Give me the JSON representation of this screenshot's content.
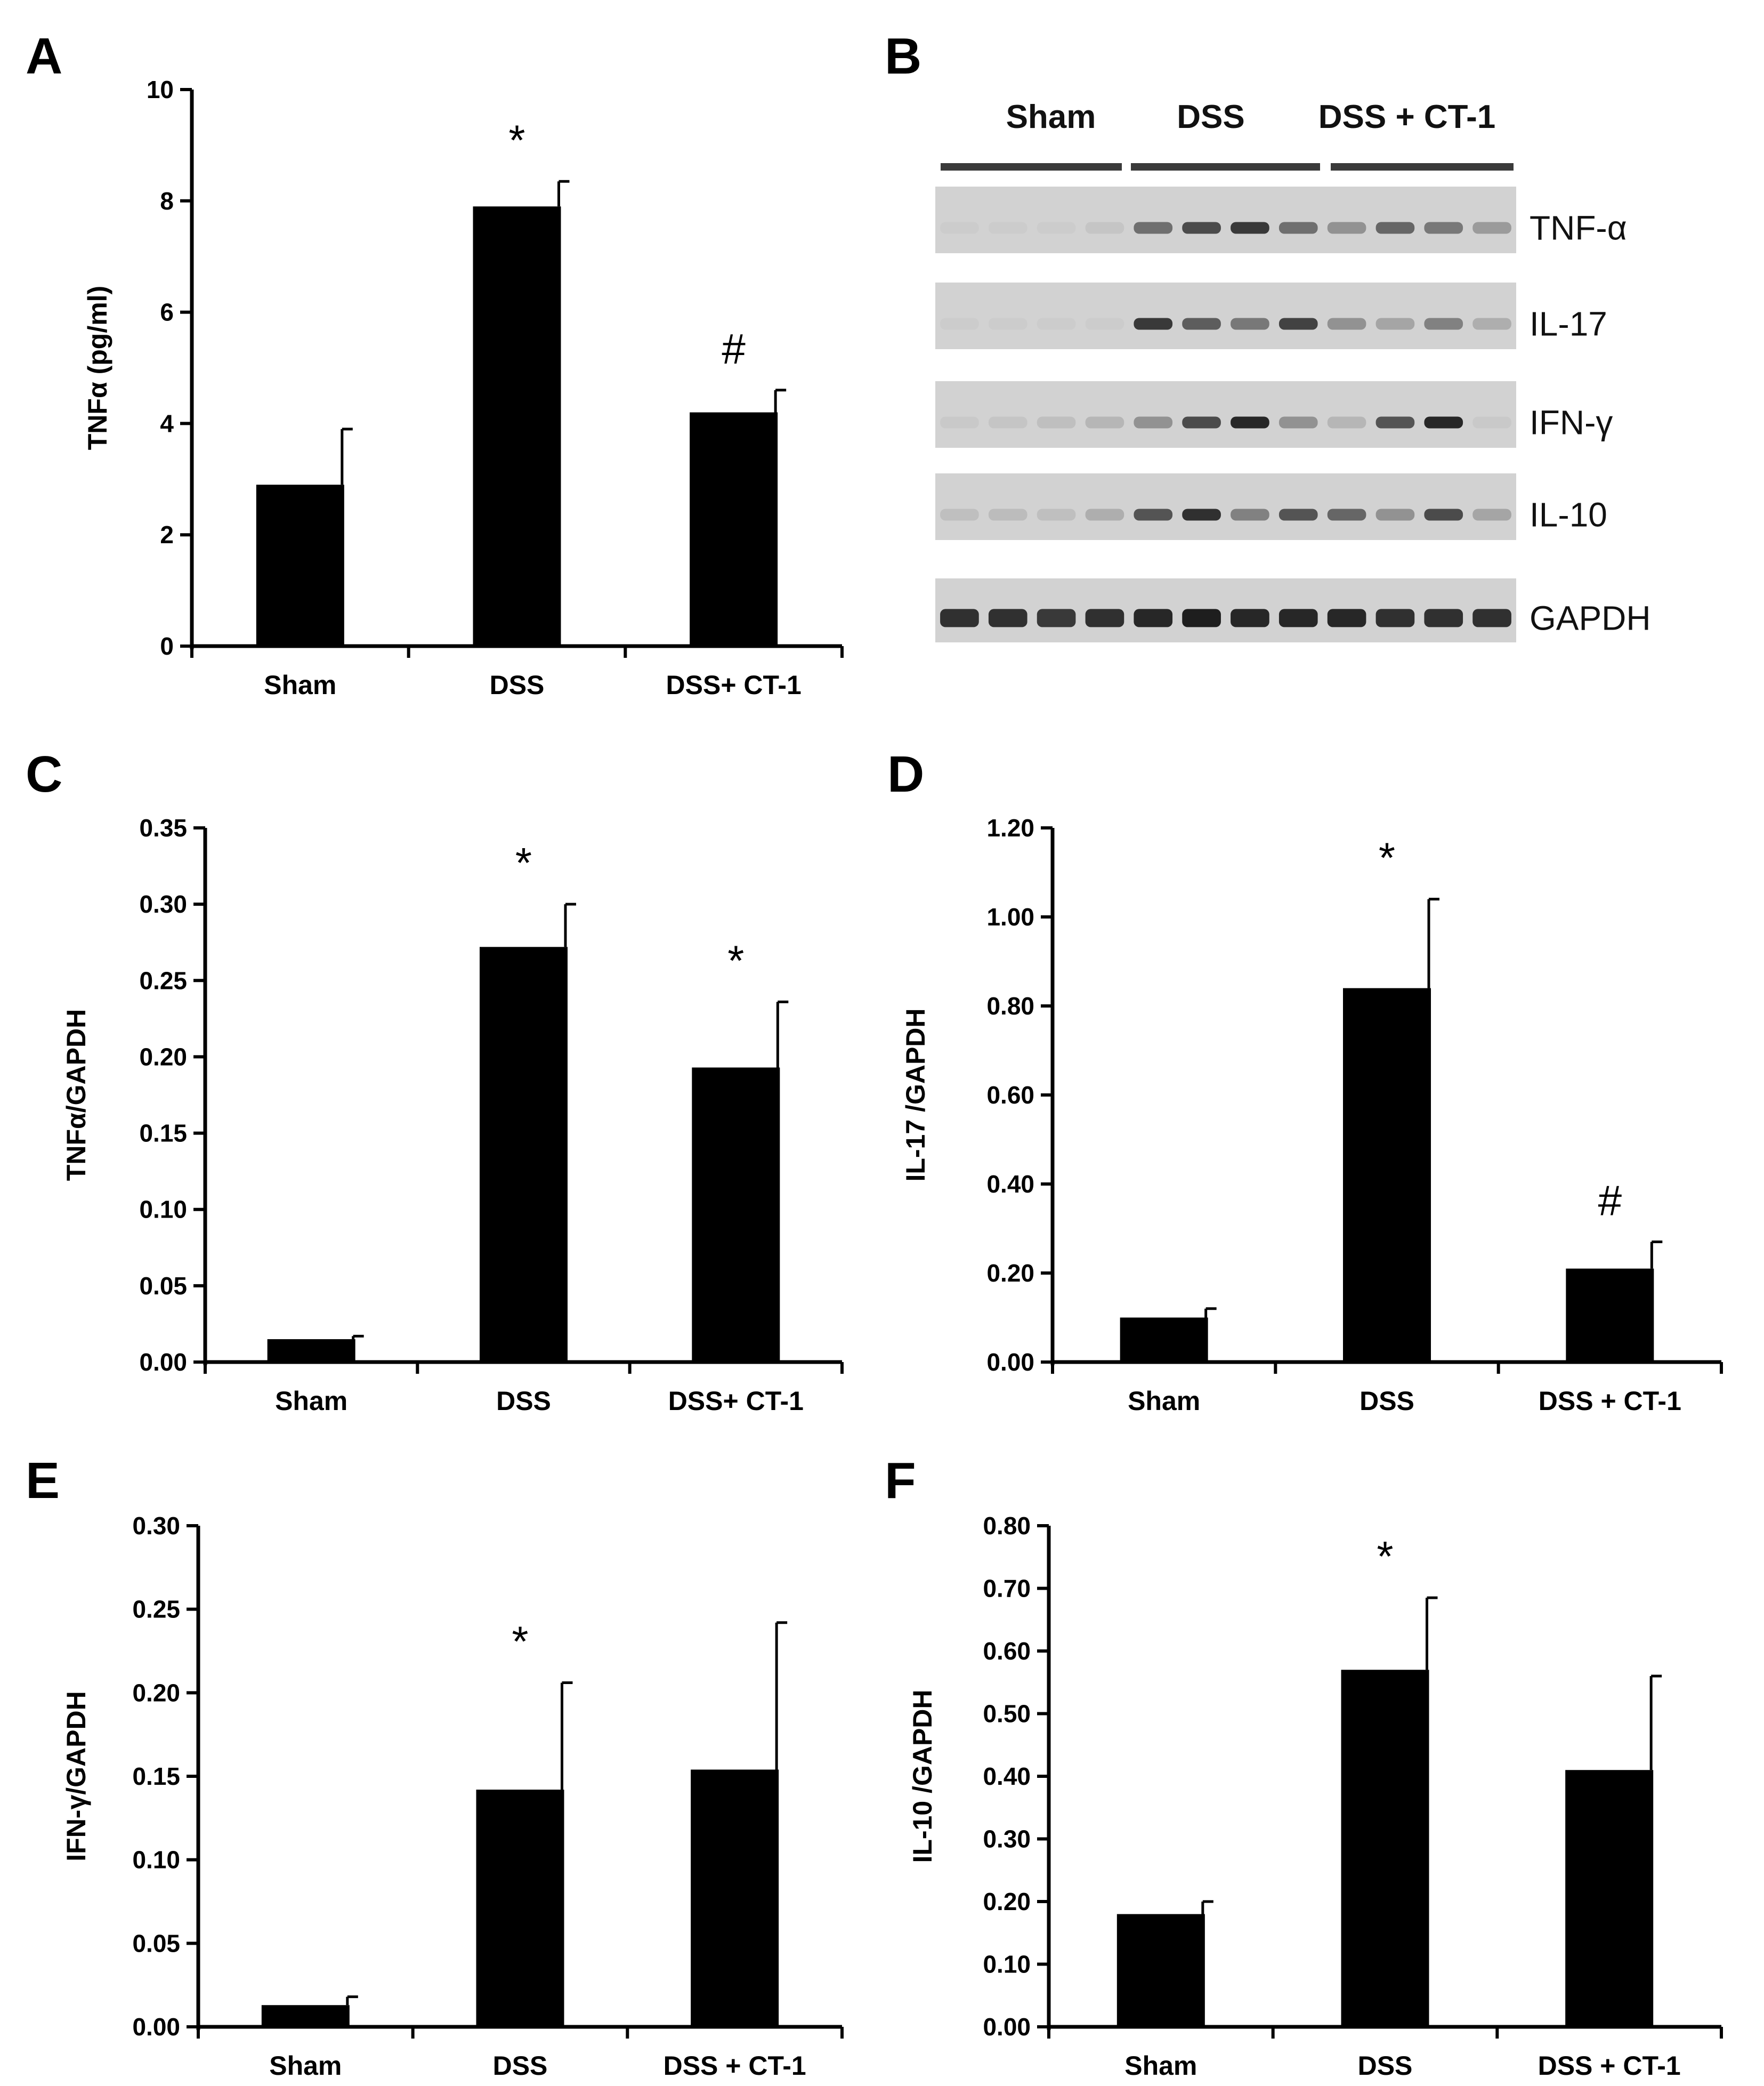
{
  "panel_labels": [
    "A",
    "B",
    "C",
    "D",
    "E",
    "F"
  ],
  "colors": {
    "bar": "#000000",
    "axis": "#000000",
    "blot_bg": "#d2d2d2",
    "blot_band": "#1e1e1e",
    "gap_line": "#e6e6e6"
  },
  "blot": {
    "panel": "B",
    "group_headers": [
      "Sham",
      "DSS",
      "DSS + CT-1"
    ],
    "lanes_per_group": 4,
    "rows": [
      {
        "label": "TNF-α",
        "intensities": [
          0.02,
          0.02,
          0.03,
          0.07,
          0.55,
          0.75,
          0.85,
          0.55,
          0.35,
          0.6,
          0.5,
          0.3
        ]
      },
      {
        "label": "IL-17",
        "intensities": [
          0.02,
          0.02,
          0.02,
          0.03,
          0.85,
          0.65,
          0.5,
          0.8,
          0.35,
          0.25,
          0.45,
          0.2
        ]
      },
      {
        "label": "IFN-γ",
        "intensities": [
          0.05,
          0.07,
          0.1,
          0.15,
          0.35,
          0.75,
          0.95,
          0.35,
          0.15,
          0.7,
          0.95,
          0.05
        ]
      },
      {
        "label": "IL-10",
        "intensities": [
          0.1,
          0.12,
          0.1,
          0.2,
          0.7,
          0.9,
          0.45,
          0.7,
          0.6,
          0.35,
          0.75,
          0.25
        ]
      },
      {
        "label": "GAPDH",
        "intensities": [
          0.9,
          0.9,
          0.85,
          0.9,
          0.95,
          1.0,
          0.95,
          0.95,
          0.95,
          0.9,
          0.9,
          0.9
        ]
      }
    ]
  },
  "chart_data": [
    {
      "panel": "A",
      "type": "bar",
      "title": "",
      "xlabel": "",
      "ylabel": "TNFα (pg/ml)",
      "categories": [
        "Sham",
        "DSS",
        "DSS+ CT-1"
      ],
      "values": [
        2.9,
        7.9,
        4.2
      ],
      "errors": [
        1.0,
        0.45,
        0.4
      ],
      "annotations": [
        "",
        "*",
        "#"
      ],
      "ylim": [
        0,
        10
      ],
      "yticks": [
        "0",
        "2",
        "4",
        "6",
        "8",
        "10"
      ],
      "grid": false
    },
    {
      "panel": "C",
      "type": "bar",
      "title": "",
      "xlabel": "",
      "ylabel": "TNFα/GAPDH",
      "categories": [
        "Sham",
        "DSS",
        "DSS+ CT-1"
      ],
      "values": [
        0.015,
        0.272,
        0.193
      ],
      "errors": [
        0.002,
        0.028,
        0.043
      ],
      "annotations": [
        "",
        "*",
        "*"
      ],
      "ylim": [
        0,
        0.35
      ],
      "yticks": [
        "0.00",
        "0.05",
        "0.10",
        "0.15",
        "0.20",
        "0.25",
        "0.30",
        "0.35"
      ],
      "grid": false
    },
    {
      "panel": "D",
      "type": "bar",
      "title": "",
      "xlabel": "",
      "ylabel": "IL-17 /GAPDH",
      "categories": [
        "Sham",
        "DSS",
        "DSS + CT-1"
      ],
      "values": [
        0.1,
        0.84,
        0.21
      ],
      "errors": [
        0.02,
        0.2,
        0.06
      ],
      "annotations": [
        "",
        "*",
        "#"
      ],
      "ylim": [
        0,
        1.2
      ],
      "yticks": [
        "0.00",
        "0.20",
        "0.40",
        "0.60",
        "0.80",
        "1.00",
        "1.20"
      ],
      "grid": false
    },
    {
      "panel": "E",
      "type": "bar",
      "title": "",
      "xlabel": "",
      "ylabel": "IFN-γ/GAPDH",
      "categories": [
        "Sham",
        "DSS",
        "DSS + CT-1"
      ],
      "values": [
        0.013,
        0.142,
        0.154
      ],
      "errors": [
        0.005,
        0.064,
        0.088
      ],
      "annotations": [
        "",
        "*",
        ""
      ],
      "ylim": [
        0,
        0.3
      ],
      "yticks": [
        "0.00",
        "0.05",
        "0.10",
        "0.15",
        "0.20",
        "0.25",
        "0.30"
      ],
      "grid": false
    },
    {
      "panel": "F",
      "type": "bar",
      "title": "",
      "xlabel": "",
      "ylabel": "IL-10 /GAPDH",
      "categories": [
        "Sham",
        "DSS",
        "DSS + CT-1"
      ],
      "values": [
        0.18,
        0.57,
        0.41
      ],
      "errors": [
        0.02,
        0.115,
        0.15
      ],
      "annotations": [
        "",
        "*",
        ""
      ],
      "ylim": [
        0,
        0.8
      ],
      "yticks": [
        "0.00",
        "0.10",
        "0.20",
        "0.30",
        "0.40",
        "0.50",
        "0.60",
        "0.70",
        "0.80"
      ],
      "grid": false
    }
  ]
}
